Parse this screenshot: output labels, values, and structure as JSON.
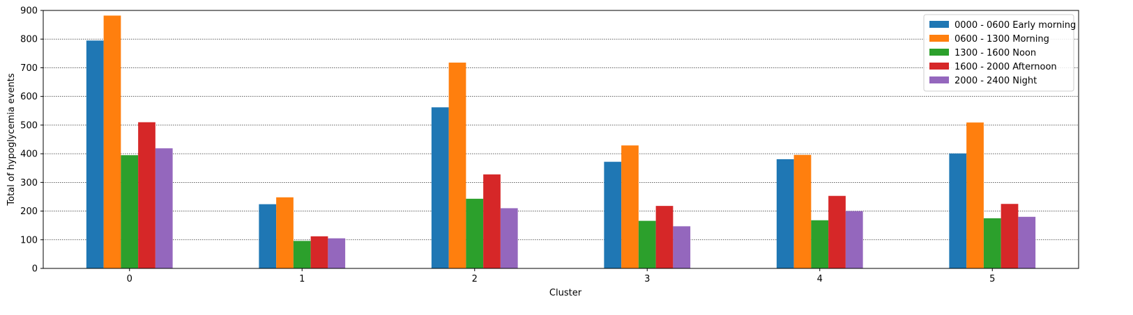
{
  "chart_data": {
    "type": "bar",
    "title": "",
    "xlabel": "Cluster",
    "ylabel": "Total of hypoglycemia events",
    "categories": [
      "0",
      "1",
      "2",
      "3",
      "4",
      "5"
    ],
    "ylim": [
      0,
      900
    ],
    "yticks": [
      0,
      100,
      200,
      300,
      400,
      500,
      600,
      700,
      800,
      900
    ],
    "grid": "horizontal dotted",
    "legend_position": "top-right",
    "series": [
      {
        "name": "0000 - 0600 Early morning",
        "color": "#1f77b4",
        "values": [
          795,
          224,
          562,
          372,
          381,
          401
        ]
      },
      {
        "name": "0600 - 1300 Morning",
        "color": "#ff7f0e",
        "values": [
          882,
          248,
          718,
          429,
          396,
          509
        ]
      },
      {
        "name": "1300 - 1600 Noon",
        "color": "#2ca02c",
        "values": [
          395,
          96,
          243,
          166,
          168,
          175
        ]
      },
      {
        "name": "1600 - 2000 Afternoon",
        "color": "#d62728",
        "values": [
          510,
          112,
          328,
          218,
          253,
          225
        ]
      },
      {
        "name": "2000 - 2400 Night",
        "color": "#9467bd",
        "values": [
          419,
          105,
          210,
          147,
          200,
          180
        ]
      }
    ]
  }
}
